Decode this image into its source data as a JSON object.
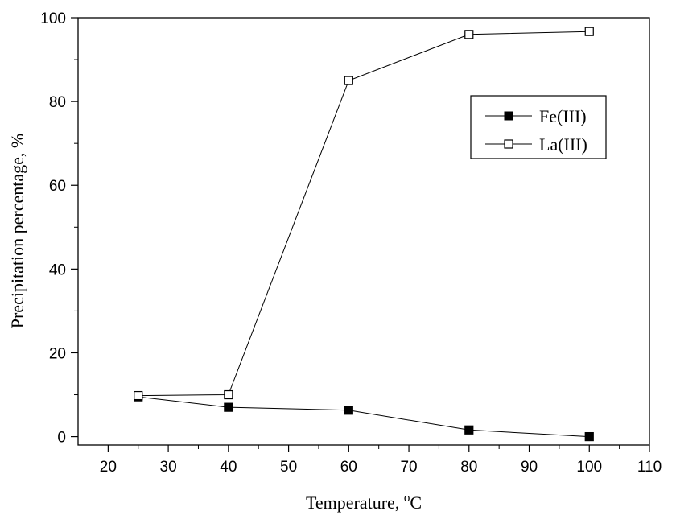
{
  "chart_data": {
    "type": "line",
    "xlabel": "Temperature, ",
    "xlabel_sup": "o",
    "xlabel_unit": "C",
    "ylabel": "Precipitation percentage, %",
    "xlim": [
      15,
      110
    ],
    "ylim": [
      -2,
      100
    ],
    "xticks": [
      20,
      30,
      40,
      50,
      60,
      70,
      80,
      90,
      100,
      110
    ],
    "yticks": [
      0,
      20,
      40,
      60,
      80,
      100
    ],
    "grid": false,
    "legend_position": "upper-right",
    "series": [
      {
        "name": "Fe(III)",
        "marker": "filled-square",
        "color": "#000000",
        "x": [
          25,
          40,
          60,
          80,
          100
        ],
        "y": [
          9.5,
          7.0,
          6.3,
          1.6,
          0.0
        ]
      },
      {
        "name": "La(III)",
        "marker": "open-square",
        "color": "#000000",
        "x": [
          25,
          40,
          60,
          80,
          100
        ],
        "y": [
          9.8,
          10.0,
          85.0,
          96.0,
          96.7
        ]
      }
    ]
  }
}
